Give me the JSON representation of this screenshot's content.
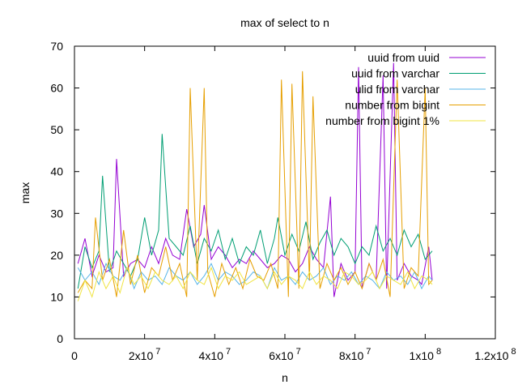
{
  "chart_data": {
    "type": "line",
    "title": "max of select to n",
    "xlabel": "n",
    "ylabel": "max",
    "xlim": [
      0,
      120000000
    ],
    "ylim": [
      0,
      70
    ],
    "xticks": [
      {
        "value": 0,
        "label": "0"
      },
      {
        "value": 20000000,
        "label": "2x10 7"
      },
      {
        "value": 40000000,
        "label": "4x10 7"
      },
      {
        "value": 60000000,
        "label": "6x10 7"
      },
      {
        "value": 80000000,
        "label": "8x10 7"
      },
      {
        "value": 100000000,
        "label": "1x10 8"
      },
      {
        "value": 120000000,
        "label": "1.2x10 8"
      }
    ],
    "yticks": [
      {
        "value": 0,
        "label": "0"
      },
      {
        "value": 10,
        "label": "10"
      },
      {
        "value": 20,
        "label": "20"
      },
      {
        "value": 30,
        "label": "30"
      },
      {
        "value": 40,
        "label": "40"
      },
      {
        "value": 50,
        "label": "50"
      },
      {
        "value": 60,
        "label": "60"
      },
      {
        "value": 70,
        "label": "70"
      }
    ],
    "grid": false,
    "legend_position": "top-right",
    "series": [
      {
        "name": "uuid from uuid",
        "color": "#9400d3",
        "x": [
          1000000,
          3000000,
          5000000,
          7000000,
          9000000,
          11000000,
          12000000,
          14000000,
          16000000,
          18000000,
          20000000,
          22000000,
          24000000,
          26000000,
          28000000,
          30000000,
          32000000,
          34000000,
          36000000,
          37000000,
          39000000,
          41000000,
          43000000,
          45000000,
          47000000,
          49000000,
          51000000,
          53000000,
          55000000,
          57000000,
          59000000,
          61000000,
          63000000,
          65000000,
          67000000,
          69000000,
          71000000,
          73000000,
          74000000,
          76000000,
          78000000,
          80000000,
          81000000,
          82000000,
          84000000,
          86000000,
          88000000,
          89000000,
          91000000,
          92000000,
          94000000,
          96000000,
          98000000,
          99000000,
          101000000,
          102000000
        ],
        "y": [
          18,
          24,
          15,
          20,
          16,
          17,
          43,
          15,
          18,
          19,
          17,
          22,
          18,
          24,
          20,
          19,
          31,
          22,
          25,
          32,
          19,
          22,
          20,
          17,
          19,
          18,
          21,
          19,
          17,
          18,
          20,
          19,
          16,
          18,
          22,
          19,
          17,
          34,
          10,
          18,
          14,
          16,
          65,
          12,
          18,
          14,
          63,
          12,
          66,
          14,
          18,
          15,
          14,
          13,
          22,
          14
        ]
      },
      {
        "name": "uuid from varchar",
        "color": "#009e73",
        "x": [
          1000000,
          3000000,
          5000000,
          7000000,
          8000000,
          10000000,
          12000000,
          14000000,
          16000000,
          18000000,
          20000000,
          22000000,
          24000000,
          25000000,
          27000000,
          29000000,
          31000000,
          33000000,
          35000000,
          37000000,
          39000000,
          41000000,
          43000000,
          45000000,
          47000000,
          49000000,
          51000000,
          53000000,
          55000000,
          57000000,
          58000000,
          60000000,
          62000000,
          64000000,
          66000000,
          68000000,
          70000000,
          72000000,
          74000000,
          76000000,
          78000000,
          80000000,
          82000000,
          84000000,
          86000000,
          88000000,
          90000000,
          92000000,
          94000000,
          96000000,
          98000000,
          100000000,
          102000000
        ],
        "y": [
          12,
          22,
          17,
          21,
          39,
          16,
          21,
          18,
          15,
          19,
          29,
          20,
          26,
          49,
          24,
          22,
          20,
          27,
          18,
          24,
          21,
          26,
          19,
          24,
          18,
          22,
          20,
          26,
          18,
          24,
          29,
          20,
          25,
          21,
          28,
          19,
          23,
          26,
          20,
          24,
          22,
          18,
          22,
          20,
          27,
          21,
          24,
          20,
          26,
          22,
          25,
          19,
          21
        ]
      },
      {
        "name": "ulid from varchar",
        "color": "#56b4e9",
        "x": [
          1000000,
          3000000,
          5000000,
          7000000,
          9000000,
          11000000,
          13000000,
          15000000,
          17000000,
          19000000,
          21000000,
          23000000,
          25000000,
          27000000,
          29000000,
          31000000,
          33000000,
          35000000,
          37000000,
          39000000,
          41000000,
          43000000,
          45000000,
          47000000,
          49000000,
          51000000,
          53000000,
          55000000,
          57000000,
          59000000,
          61000000,
          63000000,
          65000000,
          67000000,
          69000000,
          71000000,
          73000000,
          75000000,
          77000000,
          79000000,
          81000000,
          83000000,
          85000000,
          87000000,
          89000000,
          91000000,
          93000000,
          95000000,
          97000000,
          99000000,
          101000000,
          102000000
        ],
        "y": [
          17,
          14,
          16,
          13,
          18,
          15,
          14,
          17,
          12,
          16,
          14,
          15,
          13,
          17,
          15,
          14,
          16,
          13,
          15,
          18,
          14,
          16,
          15,
          13,
          14,
          16,
          15,
          12,
          17,
          14,
          15,
          13,
          16,
          14,
          15,
          17,
          13,
          15,
          14,
          16,
          13,
          15,
          14,
          12,
          16,
          14,
          15,
          13,
          16,
          12,
          15,
          14
        ]
      },
      {
        "name": "number from bigint",
        "color": "#e69f00",
        "x": [
          1000000,
          3000000,
          5000000,
          6000000,
          8000000,
          10000000,
          12000000,
          14000000,
          16000000,
          18000000,
          20000000,
          22000000,
          24000000,
          26000000,
          28000000,
          30000000,
          32000000,
          33000000,
          35000000,
          37000000,
          38000000,
          40000000,
          42000000,
          44000000,
          46000000,
          48000000,
          50000000,
          52000000,
          54000000,
          56000000,
          58000000,
          59000000,
          61000000,
          62000000,
          64000000,
          65000000,
          67000000,
          68000000,
          70000000,
          72000000,
          74000000,
          76000000,
          78000000,
          80000000,
          82000000,
          84000000,
          86000000,
          88000000,
          90000000,
          92000000,
          94000000,
          96000000,
          98000000,
          100000000,
          101000000,
          102000000
        ],
        "y": [
          11,
          14,
          12,
          29,
          14,
          19,
          10,
          26,
          13,
          20,
          11,
          17,
          15,
          22,
          14,
          18,
          10,
          60,
          14,
          60,
          16,
          10,
          18,
          13,
          17,
          12,
          19,
          15,
          14,
          18,
          12,
          62,
          10,
          61,
          12,
          64,
          14,
          58,
          12,
          18,
          14,
          17,
          13,
          16,
          12,
          18,
          14,
          19,
          10,
          62,
          12,
          17,
          15,
          60,
          13,
          14
        ]
      },
      {
        "name": "number from bigint 1%",
        "color": "#f0e442",
        "x": [
          1000000,
          3000000,
          5000000,
          7000000,
          9000000,
          11000000,
          13000000,
          15000000,
          17000000,
          19000000,
          21000000,
          23000000,
          25000000,
          27000000,
          29000000,
          31000000,
          33000000,
          35000000,
          37000000,
          39000000,
          41000000,
          43000000,
          45000000,
          47000000,
          49000000,
          51000000,
          53000000,
          55000000,
          57000000,
          59000000,
          61000000,
          63000000,
          65000000,
          67000000,
          69000000,
          71000000,
          73000000,
          75000000,
          77000000,
          79000000,
          81000000,
          83000000,
          85000000,
          87000000,
          89000000,
          91000000,
          93000000,
          95000000,
          97000000,
          99000000,
          101000000,
          102000000
        ],
        "y": [
          9,
          14,
          10,
          16,
          12,
          15,
          11,
          17,
          13,
          15,
          12,
          16,
          14,
          13,
          15,
          12,
          16,
          14,
          13,
          17,
          12,
          15,
          14,
          16,
          13,
          14,
          15,
          12,
          16,
          13,
          15,
          14,
          12,
          16,
          13,
          15,
          14,
          12,
          16,
          15,
          13,
          14,
          16,
          12,
          15,
          14,
          13,
          16,
          12,
          15,
          14,
          13
        ]
      }
    ]
  }
}
